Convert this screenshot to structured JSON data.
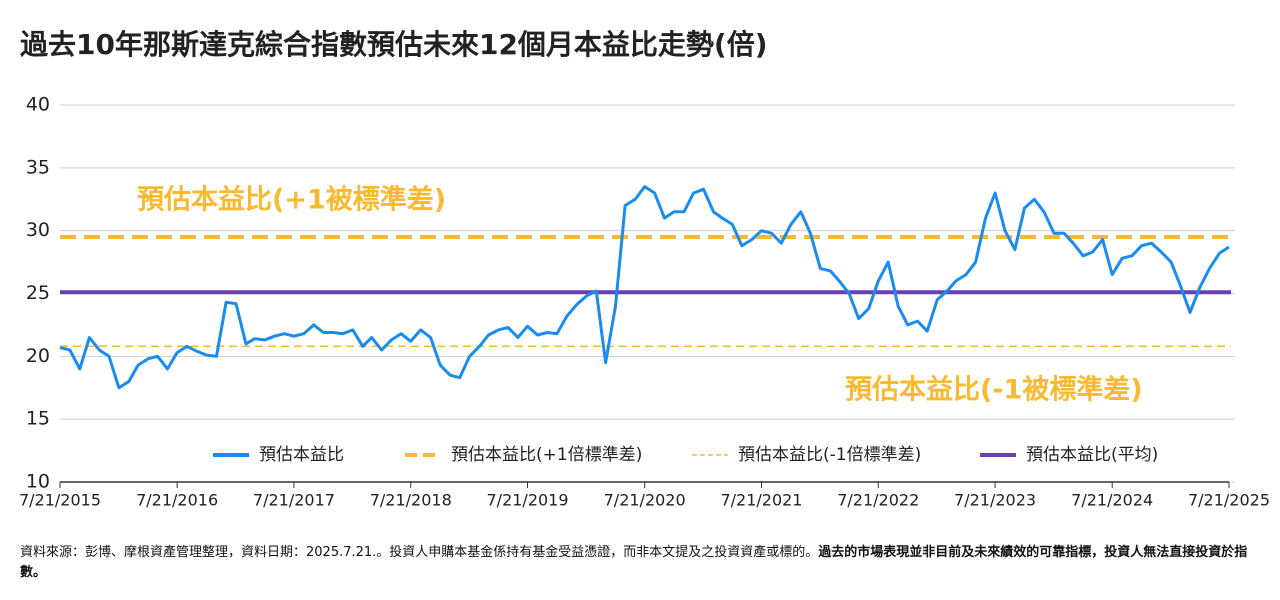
{
  "chart_data": {
    "type": "line",
    "title": "過去10年那斯達克綜合指數預估未來12個月本益比走勢(倍)",
    "x": [
      "2015-07-21",
      "2015-08-21",
      "2015-09-21",
      "2015-10-21",
      "2015-11-21",
      "2015-12-21",
      "2016-01-21",
      "2016-02-21",
      "2016-03-21",
      "2016-04-21",
      "2016-05-21",
      "2016-06-21",
      "2016-07-21",
      "2016-08-21",
      "2016-09-21",
      "2016-10-21",
      "2016-11-21",
      "2016-12-21",
      "2017-01-21",
      "2017-02-21",
      "2017-03-21",
      "2017-04-21",
      "2017-05-21",
      "2017-06-21",
      "2017-07-21",
      "2017-08-21",
      "2017-09-21",
      "2017-10-21",
      "2017-11-21",
      "2017-12-21",
      "2018-01-21",
      "2018-02-21",
      "2018-03-21",
      "2018-04-21",
      "2018-05-21",
      "2018-06-21",
      "2018-07-21",
      "2018-08-21",
      "2018-09-21",
      "2018-10-21",
      "2018-11-21",
      "2018-12-21",
      "2019-01-21",
      "2019-02-21",
      "2019-03-21",
      "2019-04-21",
      "2019-05-21",
      "2019-06-21",
      "2019-07-21",
      "2019-08-21",
      "2019-09-21",
      "2019-10-21",
      "2019-11-21",
      "2019-12-21",
      "2020-01-21",
      "2020-02-21",
      "2020-03-21",
      "2020-04-21",
      "2020-05-21",
      "2020-06-21",
      "2020-07-21",
      "2020-08-21",
      "2020-09-21",
      "2020-10-21",
      "2020-11-21",
      "2020-12-21",
      "2021-01-21",
      "2021-02-21",
      "2021-03-21",
      "2021-04-21",
      "2021-05-21",
      "2021-06-21",
      "2021-07-21",
      "2021-08-21",
      "2021-09-21",
      "2021-10-21",
      "2021-11-21",
      "2021-12-21",
      "2022-01-21",
      "2022-02-21",
      "2022-03-21",
      "2022-04-21",
      "2022-05-21",
      "2022-06-21",
      "2022-07-21",
      "2022-08-21",
      "2022-09-21",
      "2022-10-21",
      "2022-11-21",
      "2022-12-21",
      "2023-01-21",
      "2023-02-21",
      "2023-03-21",
      "2023-04-21",
      "2023-05-21",
      "2023-06-21",
      "2023-07-21",
      "2023-08-21",
      "2023-09-21",
      "2023-10-21",
      "2023-11-21",
      "2023-12-21",
      "2024-01-21",
      "2024-02-21",
      "2024-03-21",
      "2024-04-21",
      "2024-05-21",
      "2024-06-21",
      "2024-07-21",
      "2024-08-21",
      "2024-09-21",
      "2024-10-21",
      "2024-11-21",
      "2024-12-21",
      "2025-01-21",
      "2025-02-21",
      "2025-03-21",
      "2025-04-21",
      "2025-05-21",
      "2025-06-21",
      "2025-07-21"
    ],
    "series": [
      {
        "name": "預估本益比",
        "color": "#1a8cf0",
        "values": [
          20.7,
          20.5,
          19,
          21.5,
          20.5,
          20,
          17.5,
          18,
          19.3,
          19.8,
          20,
          19,
          20.3,
          20.8,
          20.4,
          20.1,
          20,
          24.3,
          24.2,
          21,
          21.4,
          21.3,
          21.6,
          21.8,
          21.6,
          21.8,
          22.5,
          21.9,
          21.9,
          21.8,
          22.1,
          20.8,
          21.5,
          20.5,
          21.3,
          21.8,
          21.2,
          22.1,
          21.5,
          19.3,
          18.5,
          18.3,
          20,
          20.8,
          21.7,
          22.1,
          22.3,
          21.5,
          22.4,
          21.7,
          21.9,
          21.8,
          23.2,
          24.1,
          24.8,
          25.2,
          19.5,
          24,
          32,
          32.5,
          33.5,
          33,
          31,
          31.5,
          31.5,
          33,
          33.3,
          31.5,
          31,
          30.5,
          28.8,
          29.3,
          30,
          29.8,
          29,
          30.5,
          31.5,
          29.8,
          27,
          26.8,
          26,
          25,
          23,
          23.8,
          26,
          27.5,
          24,
          22.5,
          22.8,
          22,
          24.5,
          25.2,
          26,
          26.5,
          27.5,
          31,
          33,
          30,
          28.5,
          31.8,
          32.5,
          31.5,
          29.8,
          29.8,
          29,
          28,
          28.3,
          29.3,
          26.5,
          27.8,
          28,
          28.8,
          29,
          28.3,
          27.5,
          25.5,
          23.5,
          25.5,
          27,
          28.2,
          28.7
        ]
      }
    ],
    "reference_lines": [
      {
        "name": "預估本益比(+1倍標準差)",
        "value": 29.5,
        "color": "#f9b931",
        "style": "dashed"
      },
      {
        "name": "預估本益比(-1倍標準差)",
        "value": 20.8,
        "color": "#f9b931",
        "style": "thin-dashed"
      },
      {
        "name": "預估本益比(平均)",
        "value": 25.1,
        "color": "#6a3fb0",
        "style": "solid"
      }
    ],
    "annotations": [
      "預估本益比(+1被標準差)",
      "預估本益比(-1被標準差)"
    ],
    "xlim": [
      "2015-07-21",
      "2025-07-21"
    ],
    "xticks": [
      {
        "value": "2015-07-21",
        "label": "7/21/2015"
      },
      {
        "value": "2016-07-21",
        "label": "7/21/2016"
      },
      {
        "value": "2017-07-21",
        "label": "7/21/2017"
      },
      {
        "value": "2018-07-21",
        "label": "7/21/2018"
      },
      {
        "value": "2019-07-21",
        "label": "7/21/2019"
      },
      {
        "value": "2020-07-21",
        "label": "7/21/2020"
      },
      {
        "value": "2021-07-21",
        "label": "7/21/2021"
      },
      {
        "value": "2022-07-21",
        "label": "7/21/2022"
      },
      {
        "value": "2023-07-21",
        "label": "7/21/2023"
      },
      {
        "value": "2024-07-21",
        "label": "7/21/2024"
      },
      {
        "value": "2025-07-21",
        "label": "7/21/2025"
      }
    ],
    "ylim": [
      10,
      40
    ],
    "yticks": [
      10,
      15,
      20,
      25,
      30,
      35,
      40
    ],
    "grid": true,
    "footnote": [
      "資料來源：彭博、摩根資產管理整理，資料日期：2025.7.21.。投資人申購本基金係持有基金受益憑證，而非本文提及之投資資產或標的。",
      "過去的市場表現並非目前及未來績效的可靠指標，投資人無法直接投資於指數。"
    ]
  }
}
